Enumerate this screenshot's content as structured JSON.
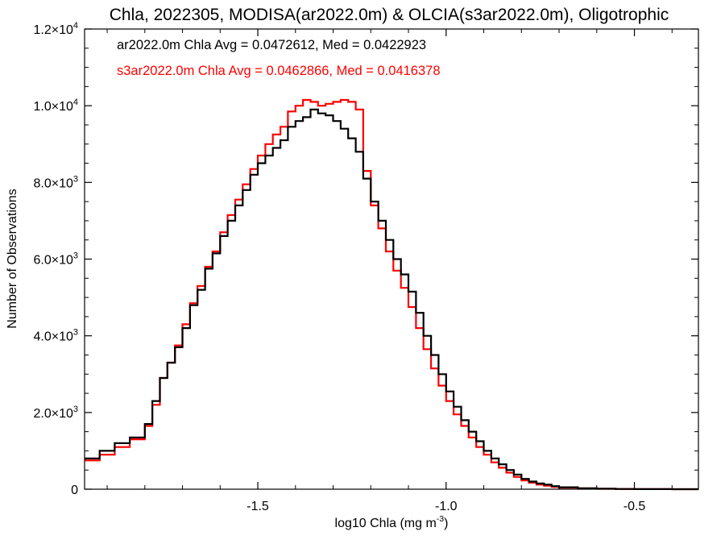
{
  "chart_data": {
    "type": "line",
    "title": "Chla, 2022305, MODISA(ar2022.0m) & OLCIA(s3ar2022.0m), Oligotrophic",
    "xlabel": "log10 Chla (mg m",
    "xlabel_sup": "-3",
    "xlabel_suffix": ")",
    "ylabel": "Number of Observations",
    "xlim": [
      -1.96,
      -0.33
    ],
    "ylim": [
      0,
      12000
    ],
    "grid": false,
    "x_ticks": [
      {
        "value": -1.5,
        "label": "-1.5"
      },
      {
        "value": -1.0,
        "label": "-1.0"
      },
      {
        "value": -0.5,
        "label": "-0.5"
      }
    ],
    "y_ticks": [
      {
        "value": 0,
        "mant": "0",
        "exp": ""
      },
      {
        "value": 2000,
        "mant": "2.0×10",
        "exp": "3"
      },
      {
        "value": 4000,
        "mant": "4.0×10",
        "exp": "3"
      },
      {
        "value": 6000,
        "mant": "6.0×10",
        "exp": "3"
      },
      {
        "value": 8000,
        "mant": "8.0×10",
        "exp": "3"
      },
      {
        "value": 10000,
        "mant": "1.0×10",
        "exp": "4"
      },
      {
        "value": 12000,
        "mant": "1.2×10",
        "exp": "4"
      }
    ],
    "series": [
      {
        "legend": "ar2022.0m Chla Avg = 0.0472612, Med = 0.0422923",
        "color": "#000000",
        "x": [
          -1.96,
          -1.92,
          -1.88,
          -1.84,
          -1.8,
          -1.78,
          -1.76,
          -1.74,
          -1.72,
          -1.7,
          -1.68,
          -1.66,
          -1.64,
          -1.62,
          -1.6,
          -1.58,
          -1.56,
          -1.54,
          -1.52,
          -1.5,
          -1.48,
          -1.46,
          -1.44,
          -1.42,
          -1.4,
          -1.38,
          -1.36,
          -1.34,
          -1.32,
          -1.3,
          -1.28,
          -1.26,
          -1.24,
          -1.22,
          -1.2,
          -1.18,
          -1.16,
          -1.14,
          -1.12,
          -1.1,
          -1.08,
          -1.06,
          -1.04,
          -1.02,
          -1.0,
          -0.98,
          -0.96,
          -0.94,
          -0.92,
          -0.9,
          -0.88,
          -0.86,
          -0.84,
          -0.82,
          -0.8,
          -0.78,
          -0.76,
          -0.74,
          -0.72,
          -0.7,
          -0.65,
          -0.6,
          -0.55,
          -0.5,
          -0.45,
          -0.4,
          -0.35,
          -0.33
        ],
        "values": [
          800,
          1000,
          1200,
          1350,
          1700,
          2300,
          2900,
          3300,
          3700,
          4200,
          4800,
          5200,
          5750,
          6150,
          6600,
          7000,
          7400,
          7800,
          8200,
          8500,
          8700,
          8900,
          9100,
          9450,
          9600,
          9700,
          9900,
          9800,
          9750,
          9600,
          9400,
          9150,
          8800,
          8100,
          7500,
          7000,
          6500,
          6000,
          5600,
          5150,
          4600,
          4000,
          3500,
          3000,
          2550,
          2150,
          1800,
          1500,
          1250,
          1000,
          800,
          650,
          500,
          380,
          270,
          200,
          150,
          120,
          80,
          50,
          25,
          12,
          6,
          3,
          2,
          1,
          0,
          0
        ]
      },
      {
        "legend": "s3ar2022.0m Chla Avg = 0.0462866, Med = 0.0416378",
        "color": "#ff0000",
        "x": [
          -1.96,
          -1.92,
          -1.88,
          -1.84,
          -1.8,
          -1.78,
          -1.76,
          -1.74,
          -1.72,
          -1.7,
          -1.68,
          -1.66,
          -1.64,
          -1.62,
          -1.6,
          -1.58,
          -1.56,
          -1.54,
          -1.52,
          -1.5,
          -1.48,
          -1.46,
          -1.44,
          -1.42,
          -1.4,
          -1.38,
          -1.36,
          -1.34,
          -1.32,
          -1.3,
          -1.28,
          -1.26,
          -1.24,
          -1.22,
          -1.2,
          -1.18,
          -1.16,
          -1.14,
          -1.12,
          -1.1,
          -1.08,
          -1.06,
          -1.04,
          -1.02,
          -1.0,
          -0.98,
          -0.96,
          -0.94,
          -0.92,
          -0.9,
          -0.88,
          -0.86,
          -0.84,
          -0.82,
          -0.8,
          -0.78,
          -0.76,
          -0.74,
          -0.72,
          -0.7,
          -0.65,
          -0.6,
          -0.55,
          -0.5,
          -0.45,
          -0.4,
          -0.35,
          -0.33
        ],
        "values": [
          750,
          900,
          1100,
          1300,
          1650,
          2200,
          2900,
          3300,
          3750,
          4300,
          4850,
          5300,
          5800,
          6200,
          6700,
          7150,
          7550,
          7950,
          8350,
          8700,
          9000,
          9250,
          9450,
          9850,
          10000,
          10150,
          10100,
          10000,
          10050,
          10100,
          10150,
          10100,
          9900,
          8300,
          7400,
          6800,
          6200,
          5700,
          5250,
          4750,
          4200,
          3650,
          3150,
          2700,
          2300,
          1950,
          1650,
          1350,
          1100,
          900,
          700,
          560,
          430,
          320,
          230,
          170,
          120,
          90,
          60,
          40,
          20,
          10,
          5,
          3,
          2,
          1,
          0,
          0
        ]
      }
    ]
  }
}
